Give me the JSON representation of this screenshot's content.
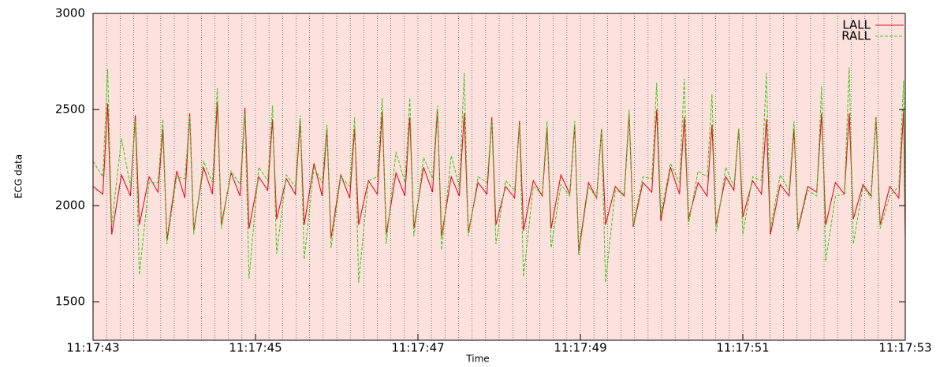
{
  "chart_data": {
    "type": "line",
    "xlabel": "Time",
    "ylabel": "ECG data",
    "xlim": [
      40663,
      40673
    ],
    "xticks": [
      {
        "value": 40663,
        "label": "11:17:43"
      },
      {
        "value": 40665,
        "label": "11:17:45"
      },
      {
        "value": 40667,
        "label": "11:17:47"
      },
      {
        "value": 40669,
        "label": "11:17:49"
      },
      {
        "value": 40671,
        "label": "11:17:51"
      },
      {
        "value": 40673,
        "label": "11:17:53"
      }
    ],
    "ylim": [
      1300,
      3000
    ],
    "yticks": [
      1500,
      2000,
      2500,
      3000
    ],
    "grid": true,
    "legend": "upper right",
    "x": [
      40663.0,
      40663.12,
      40663.18,
      40663.23,
      40663.35,
      40663.46,
      40663.52,
      40663.57,
      40663.69,
      40663.8,
      40663.86,
      40663.91,
      40664.03,
      40664.13,
      40664.19,
      40664.24,
      40664.36,
      40664.47,
      40664.53,
      40664.58,
      40664.7,
      40664.81,
      40664.87,
      40664.92,
      40665.04,
      40665.15,
      40665.21,
      40665.26,
      40665.38,
      40665.49,
      40665.55,
      40665.6,
      40665.72,
      40665.82,
      40665.88,
      40665.93,
      40666.05,
      40666.16,
      40666.22,
      40666.27,
      40666.39,
      40666.5,
      40666.56,
      40666.61,
      40666.73,
      40666.84,
      40666.9,
      40666.95,
      40667.07,
      40667.18,
      40667.24,
      40667.29,
      40667.41,
      40667.51,
      40667.57,
      40667.62,
      40667.74,
      40667.85,
      40667.91,
      40667.96,
      40668.08,
      40668.19,
      40668.25,
      40668.3,
      40668.42,
      40668.53,
      40668.59,
      40668.64,
      40668.76,
      40668.87,
      40668.93,
      40668.98,
      40669.1,
      40669.2,
      40669.26,
      40669.31,
      40669.43,
      40669.54,
      40669.6,
      40669.65,
      40669.77,
      40669.88,
      40669.94,
      40669.99,
      40670.11,
      40670.22,
      40670.28,
      40670.33,
      40670.45,
      40670.56,
      40670.62,
      40670.67,
      40670.79,
      40670.89,
      40670.95,
      40671.0,
      40671.12,
      40671.23,
      40671.29,
      40671.34,
      40671.46,
      40671.57,
      40671.63,
      40671.68,
      40671.8,
      40671.91,
      40671.97,
      40672.02,
      40672.14,
      40672.25,
      40672.31,
      40672.36,
      40672.48,
      40672.58,
      40672.64,
      40672.69,
      40672.81,
      40672.92,
      40672.98,
      40673.0
    ],
    "series": [
      {
        "name": "LALL",
        "color": "#e0101a",
        "dash": false,
        "values": [
          2100,
          2060,
          2530,
          1850,
          2160,
          2050,
          2470,
          1900,
          2150,
          2070,
          2400,
          1820,
          2180,
          2040,
          2480,
          1870,
          2200,
          2060,
          2540,
          1900,
          2170,
          2050,
          2510,
          1880,
          2150,
          2080,
          2450,
          1930,
          2140,
          2060,
          2440,
          1900,
          2220,
          2050,
          2400,
          1830,
          2160,
          2040,
          2400,
          1900,
          2130,
          2060,
          2490,
          1850,
          2170,
          2050,
          2460,
          1880,
          2200,
          2070,
          2500,
          1840,
          2150,
          2050,
          2480,
          1860,
          2120,
          2060,
          2460,
          1900,
          2100,
          2040,
          2440,
          1870,
          2130,
          2050,
          2400,
          1880,
          2160,
          2060,
          2420,
          1760,
          2120,
          2040,
          2400,
          1900,
          2100,
          2050,
          2480,
          1890,
          2120,
          2070,
          2500,
          1920,
          2200,
          2060,
          2460,
          1930,
          2120,
          2050,
          2420,
          1900,
          2150,
          2080,
          2400,
          1940,
          2130,
          2060,
          2450,
          1850,
          2110,
          2050,
          2400,
          1880,
          2100,
          2070,
          2480,
          1900,
          2120,
          2060,
          2480,
          1930,
          2110,
          2050,
          2460,
          1900,
          2100,
          2040,
          2500,
          1840
        ]
      },
      {
        "name": "RALL",
        "color": "#44cc22",
        "dash": true,
        "values": [
          2230,
          2150,
          2710,
          1900,
          2350,
          2100,
          2440,
          1640,
          2120,
          2120,
          2450,
          1800,
          2150,
          2140,
          2470,
          1850,
          2230,
          2120,
          2610,
          1880,
          2180,
          2110,
          2480,
          1620,
          2200,
          2130,
          2520,
          1750,
          2160,
          2100,
          2470,
          1720,
          2200,
          2120,
          2420,
          1780,
          2150,
          2100,
          2460,
          1600,
          2130,
          2150,
          2560,
          1800,
          2280,
          2120,
          2560,
          1840,
          2250,
          2140,
          2520,
          1770,
          2260,
          2100,
          2690,
          1840,
          2150,
          2120,
          2440,
          1800,
          2130,
          2080,
          2420,
          1630,
          2100,
          2060,
          2440,
          1780,
          2110,
          2050,
          2440,
          1740,
          2100,
          2040,
          2400,
          1600,
          2080,
          2060,
          2500,
          1900,
          2150,
          2140,
          2640,
          1950,
          2220,
          2120,
          2660,
          1900,
          2180,
          2150,
          2580,
          1860,
          2200,
          2100,
          2400,
          1850,
          2150,
          2130,
          2690,
          1880,
          2160,
          2080,
          2440,
          1870,
          2080,
          2050,
          2620,
          1710,
          2050,
          2060,
          2720,
          1800,
          2100,
          2040,
          2450,
          1880,
          2050,
          2100,
          2650,
          1920
        ]
      }
    ]
  }
}
